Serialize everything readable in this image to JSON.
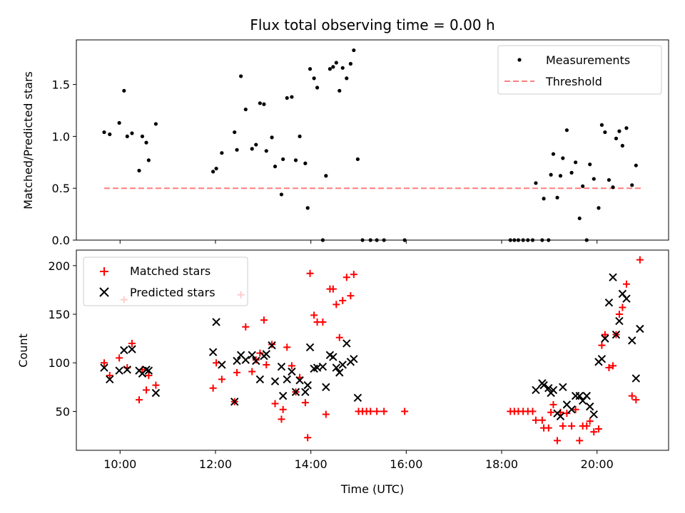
{
  "chart_data": [
    {
      "type": "scatter",
      "title": "Flux total observing time = 0.00 h",
      "xlabel": "",
      "ylabel": "Matched/Predicted stars",
      "xlim": [
        "09:05",
        "21:30"
      ],
      "ylim": [
        0,
        1.93
      ],
      "yticks": [
        0.0,
        0.5,
        1.0,
        1.5
      ],
      "ytick_labels": [
        "0.0",
        "0.5",
        "1.0",
        "1.5"
      ],
      "legend": {
        "placement": "top-right",
        "entries": [
          {
            "label": "Measurements",
            "marker": "dot",
            "color": "#000000"
          },
          {
            "label": "Threshold",
            "marker": "dashed-line",
            "color": "#ff7f7f"
          }
        ]
      },
      "threshold": {
        "y": 0.5,
        "x": [
          "09:40",
          "20:58"
        ],
        "color": "#ff7f7f",
        "style": "dashed"
      },
      "series": [
        {
          "color": "#000000",
          "marker": "dot",
          "points": [
            [
              "09:40",
              1.04
            ],
            [
              "09:47",
              1.02
            ],
            [
              "09:59",
              1.13
            ],
            [
              "10:05",
              1.44
            ],
            [
              "10:09",
              1.0
            ],
            [
              "10:15",
              1.03
            ],
            [
              "10:24",
              0.67
            ],
            [
              "10:28",
              1.0
            ],
            [
              "10:33",
              0.94
            ],
            [
              "10:36",
              0.77
            ],
            [
              "10:45",
              1.12
            ],
            [
              "11:57",
              0.66
            ],
            [
              "12:01",
              0.69
            ],
            [
              "12:08",
              0.84
            ],
            [
              "12:24",
              1.04
            ],
            [
              "12:27",
              0.87
            ],
            [
              "12:32",
              1.58
            ],
            [
              "12:38",
              1.26
            ],
            [
              "12:46",
              0.88
            ],
            [
              "12:51",
              0.92
            ],
            [
              "12:56",
              1.32
            ],
            [
              "13:01",
              1.31
            ],
            [
              "13:04",
              0.86
            ],
            [
              "13:11",
              0.99
            ],
            [
              "13:15",
              0.71
            ],
            [
              "13:23",
              0.44
            ],
            [
              "13:25",
              0.78
            ],
            [
              "13:30",
              1.37
            ],
            [
              "13:36",
              1.38
            ],
            [
              "13:41",
              0.77
            ],
            [
              "13:46",
              1.0
            ],
            [
              "13:53",
              0.74
            ],
            [
              "13:56",
              0.31
            ],
            [
              "13:59",
              1.65
            ],
            [
              "14:04",
              1.56
            ],
            [
              "14:08",
              1.47
            ],
            [
              "14:15",
              0.0
            ],
            [
              "14:19",
              0.62
            ],
            [
              "14:24",
              1.65
            ],
            [
              "14:28",
              1.67
            ],
            [
              "14:32",
              1.71
            ],
            [
              "14:36",
              1.44
            ],
            [
              "14:40",
              1.66
            ],
            [
              "14:45",
              1.56
            ],
            [
              "14:50",
              1.7
            ],
            [
              "14:54",
              1.83
            ],
            [
              "14:59",
              0.78
            ],
            [
              "15:05",
              0.0
            ],
            [
              "15:15",
              0.0
            ],
            [
              "15:23",
              0.0
            ],
            [
              "15:32",
              0.0
            ],
            [
              "15:58",
              0.0
            ],
            [
              "18:11",
              0.0
            ],
            [
              "18:16",
              0.0
            ],
            [
              "18:21",
              0.0
            ],
            [
              "18:27",
              0.0
            ],
            [
              "18:33",
              0.0
            ],
            [
              "18:39",
              0.0
            ],
            [
              "18:43",
              0.55
            ],
            [
              "18:51",
              0.0
            ],
            [
              "18:53",
              0.4
            ],
            [
              "18:59",
              0.0
            ],
            [
              "19:02",
              0.63
            ],
            [
              "19:05",
              0.83
            ],
            [
              "19:10",
              0.41
            ],
            [
              "19:14",
              0.62
            ],
            [
              "19:17",
              0.79
            ],
            [
              "19:22",
              1.06
            ],
            [
              "19:28",
              0.65
            ],
            [
              "19:33",
              0.75
            ],
            [
              "19:38",
              0.21
            ],
            [
              "19:42",
              0.52
            ],
            [
              "19:47",
              0.0
            ],
            [
              "19:51",
              0.73
            ],
            [
              "19:56",
              0.59
            ],
            [
              "20:02",
              0.31
            ],
            [
              "20:06",
              1.11
            ],
            [
              "20:10",
              1.04
            ],
            [
              "20:15",
              0.58
            ],
            [
              "20:20",
              0.51
            ],
            [
              "20:24",
              0.98
            ],
            [
              "20:28",
              1.05
            ],
            [
              "20:32",
              0.91
            ],
            [
              "20:37",
              1.08
            ],
            [
              "20:44",
              0.53
            ],
            [
              "20:49",
              0.72
            ]
          ]
        }
      ]
    },
    {
      "type": "scatter",
      "title": "",
      "xlabel": "Time (UTC)",
      "ylabel": "Count",
      "xlim": [
        "09:05",
        "21:30"
      ],
      "ylim": [
        10,
        216
      ],
      "yticks": [
        50,
        100,
        150,
        200
      ],
      "ytick_labels": [
        "50",
        "100",
        "150",
        "200"
      ],
      "xticks": [
        "10:00",
        "12:00",
        "14:00",
        "16:00",
        "18:00",
        "20:00"
      ],
      "xtick_labels": [
        "10:00",
        "12:00",
        "14:00",
        "16:00",
        "18:00",
        "20:00"
      ],
      "legend": {
        "placement": "top-left",
        "entries": [
          {
            "label": "Matched stars",
            "marker": "plus",
            "color": "#ff0000"
          },
          {
            "label": "Predicted stars",
            "marker": "x",
            "color": "#000000"
          }
        ]
      },
      "series": [
        {
          "name": "Matched stars",
          "marker": "plus",
          "color": "#ff0000",
          "points": [
            [
              "09:40",
              100
            ],
            [
              "09:47",
              87
            ],
            [
              "09:59",
              105
            ],
            [
              "10:05",
              165
            ],
            [
              "10:09",
              95
            ],
            [
              "10:15",
              120
            ],
            [
              "10:24",
              62
            ],
            [
              "10:28",
              93
            ],
            [
              "10:33",
              72
            ],
            [
              "10:36",
              87
            ],
            [
              "10:45",
              77
            ],
            [
              "11:57",
              74
            ],
            [
              "12:01",
              100
            ],
            [
              "12:08",
              83
            ],
            [
              "12:24",
              60
            ],
            [
              "12:27",
              90
            ],
            [
              "12:32",
              170
            ],
            [
              "12:38",
              137
            ],
            [
              "12:46",
              91
            ],
            [
              "12:51",
              103
            ],
            [
              "12:56",
              110
            ],
            [
              "13:01",
              144
            ],
            [
              "13:04",
              98
            ],
            [
              "13:11",
              119
            ],
            [
              "13:15",
              58
            ],
            [
              "13:23",
              42
            ],
            [
              "13:25",
              52
            ],
            [
              "13:30",
              116
            ],
            [
              "13:36",
              97
            ],
            [
              "13:41",
              70
            ],
            [
              "13:46",
              85
            ],
            [
              "13:53",
              59
            ],
            [
              "13:56",
              23
            ],
            [
              "13:59",
              192
            ],
            [
              "14:04",
              149
            ],
            [
              "14:08",
              142
            ],
            [
              "14:15",
              142
            ],
            [
              "14:19",
              47
            ],
            [
              "14:24",
              176
            ],
            [
              "14:28",
              176
            ],
            [
              "14:32",
              160
            ],
            [
              "14:36",
              126
            ],
            [
              "14:40",
              164
            ],
            [
              "14:45",
              188
            ],
            [
              "14:50",
              169
            ],
            [
              "14:54",
              191
            ],
            [
              "15:00",
              50
            ],
            [
              "15:05",
              50
            ],
            [
              "15:10",
              50
            ],
            [
              "15:15",
              50
            ],
            [
              "15:23",
              50
            ],
            [
              "15:32",
              50
            ],
            [
              "15:58",
              50
            ],
            [
              "18:11",
              50
            ],
            [
              "18:16",
              50
            ],
            [
              "18:21",
              50
            ],
            [
              "18:27",
              50
            ],
            [
              "18:33",
              50
            ],
            [
              "18:39",
              50
            ],
            [
              "18:43",
              41
            ],
            [
              "18:51",
              41
            ],
            [
              "18:53",
              33
            ],
            [
              "18:59",
              33
            ],
            [
              "19:02",
              49
            ],
            [
              "19:05",
              57
            ],
            [
              "19:10",
              20
            ],
            [
              "19:14",
              49
            ],
            [
              "19:17",
              35
            ],
            [
              "19:22",
              48
            ],
            [
              "19:28",
              35
            ],
            [
              "19:33",
              52
            ],
            [
              "19:38",
              20
            ],
            [
              "19:42",
              35
            ],
            [
              "19:47",
              35
            ],
            [
              "19:51",
              40
            ],
            [
              "19:56",
              29
            ],
            [
              "20:02",
              32
            ],
            [
              "20:06",
              118
            ],
            [
              "20:10",
              129
            ],
            [
              "20:15",
              95
            ],
            [
              "20:20",
              97
            ],
            [
              "20:24",
              129
            ],
            [
              "20:28",
              150
            ],
            [
              "20:32",
              157
            ],
            [
              "20:37",
              181
            ],
            [
              "20:44",
              66
            ],
            [
              "20:49",
              62
            ],
            [
              "20:54",
              206
            ]
          ]
        },
        {
          "name": "Predicted stars",
          "marker": "x",
          "color": "#000000",
          "points": [
            [
              "09:40",
              95
            ],
            [
              "09:47",
              83
            ],
            [
              "09:59",
              92
            ],
            [
              "10:05",
              113
            ],
            [
              "10:09",
              93
            ],
            [
              "10:15",
              114
            ],
            [
              "10:24",
              92
            ],
            [
              "10:28",
              89
            ],
            [
              "10:33",
              93
            ],
            [
              "10:36",
              92
            ],
            [
              "10:45",
              69
            ],
            [
              "11:57",
              111
            ],
            [
              "12:01",
              142
            ],
            [
              "12:08",
              98
            ],
            [
              "12:24",
              60
            ],
            [
              "12:27",
              102
            ],
            [
              "12:32",
              108
            ],
            [
              "12:38",
              103
            ],
            [
              "12:46",
              108
            ],
            [
              "12:51",
              102
            ],
            [
              "12:56",
              83
            ],
            [
              "13:01",
              107
            ],
            [
              "13:04",
              109
            ],
            [
              "13:11",
              118
            ],
            [
              "13:15",
              81
            ],
            [
              "13:23",
              96
            ],
            [
              "13:25",
              66
            ],
            [
              "13:30",
              83
            ],
            [
              "13:36",
              91
            ],
            [
              "13:41",
              70
            ],
            [
              "13:46",
              82
            ],
            [
              "13:53",
              70
            ],
            [
              "13:56",
              77
            ],
            [
              "13:59",
              116
            ],
            [
              "14:04",
              94
            ],
            [
              "14:08",
              95
            ],
            [
              "14:15",
              96
            ],
            [
              "14:19",
              75
            ],
            [
              "14:24",
              108
            ],
            [
              "14:28",
              106
            ],
            [
              "14:32",
              95
            ],
            [
              "14:36",
              90
            ],
            [
              "14:40",
              98
            ],
            [
              "14:45",
              120
            ],
            [
              "14:50",
              101
            ],
            [
              "14:54",
              104
            ],
            [
              "14:59",
              64
            ],
            [
              "18:43",
              72
            ],
            [
              "18:51",
              79
            ],
            [
              "18:53",
              77
            ],
            [
              "18:59",
              74
            ],
            [
              "19:02",
              69
            ],
            [
              "19:05",
              72
            ],
            [
              "19:10",
              48
            ],
            [
              "19:14",
              45
            ],
            [
              "19:17",
              75
            ],
            [
              "19:22",
              57
            ],
            [
              "19:28",
              52
            ],
            [
              "19:33",
              66
            ],
            [
              "19:38",
              66
            ],
            [
              "19:42",
              61
            ],
            [
              "19:47",
              66
            ],
            [
              "19:51",
              55
            ],
            [
              "19:56",
              47
            ],
            [
              "20:02",
              101
            ],
            [
              "20:06",
              104
            ],
            [
              "20:10",
              125
            ],
            [
              "20:15",
              162
            ],
            [
              "20:20",
              188
            ],
            [
              "20:24",
              129
            ],
            [
              "20:28",
              143
            ],
            [
              "20:32",
              171
            ],
            [
              "20:37",
              166
            ],
            [
              "20:44",
              123
            ],
            [
              "20:49",
              84
            ],
            [
              "20:54",
              135
            ]
          ]
        }
      ]
    }
  ]
}
